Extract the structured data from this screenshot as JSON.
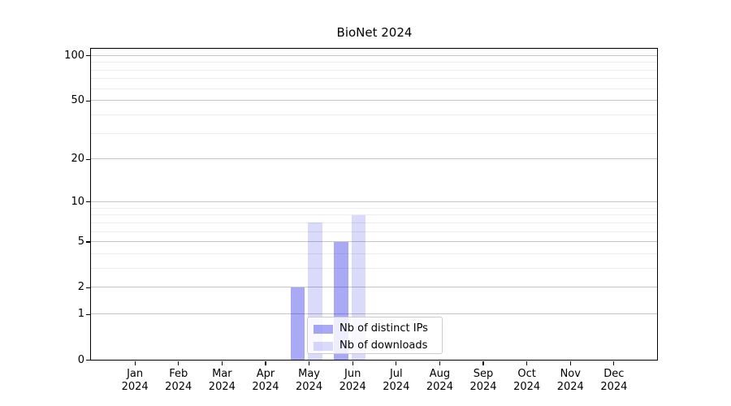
{
  "chart_data": {
    "type": "bar",
    "title": "BioNet 2024",
    "x_tick_months": [
      "Jan",
      "Feb",
      "Mar",
      "Apr",
      "May",
      "Jun",
      "Jul",
      "Aug",
      "Sep",
      "Oct",
      "Nov",
      "Dec"
    ],
    "x_tick_year": "2024",
    "series": [
      {
        "name": "Nb of distinct IPs",
        "color": "rgba(10,10,230,0.35)",
        "values": [
          0,
          0,
          0,
          0,
          2,
          5,
          0,
          0,
          0,
          0,
          0,
          0
        ]
      },
      {
        "name": "Nb of downloads",
        "color": "rgba(10,10,230,0.15)",
        "values": [
          0,
          0,
          0,
          0,
          7,
          8,
          0,
          0,
          0,
          0,
          0,
          0
        ]
      }
    ],
    "y_axis": {
      "scale": "log1p",
      "major_ticks": [
        0,
        1,
        2,
        5,
        10,
        20,
        50,
        100
      ],
      "minor_gridlines": [
        3,
        4,
        6,
        7,
        8,
        9,
        30,
        40,
        60,
        70,
        80,
        90,
        110
      ],
      "ylim": [
        0,
        112
      ]
    },
    "grid": {
      "major_color": "#c6c6c6",
      "minor_color": "#ececec",
      "enabled": true
    },
    "legend": {
      "position": "inside-bottom-center"
    },
    "colors": {
      "axis": "#000000",
      "background": "#ffffff"
    }
  }
}
